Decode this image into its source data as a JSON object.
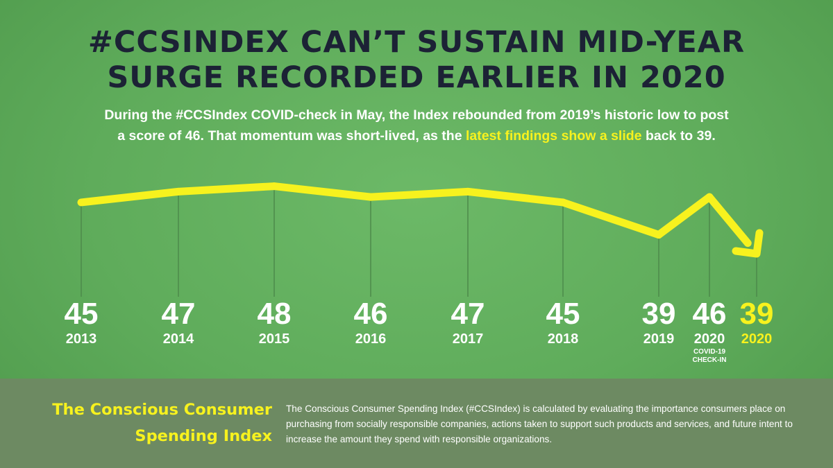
{
  "header": {
    "title_line1": "#CCSINDEX CAN’T SUSTAIN MID-YEAR",
    "title_line2": "SURGE RECORDED EARLIER IN 2020"
  },
  "subtitle": {
    "text_line1": "During the #CCSIndex COVID-check in May, the Index rebounded from 2019’s historic low to post",
    "text_line2_before": "a score of 46. That momentum was short-lived, as the ",
    "text_line2_highlight": "latest findings show a slide",
    "text_line2_after": " back to 39."
  },
  "colors": {
    "background": "#62ad5e",
    "title": "#1c2235",
    "accent_yellow": "#f7f21e",
    "footer_band": "#6d8a62"
  },
  "chart_data": {
    "type": "line",
    "title": "",
    "xlabel": "",
    "ylabel": "",
    "grid": false,
    "ylim": [
      36,
      50
    ],
    "points": [
      {
        "value": 45,
        "year": "2013",
        "note": ""
      },
      {
        "value": 47,
        "year": "2014",
        "note": ""
      },
      {
        "value": 48,
        "year": "2015",
        "note": ""
      },
      {
        "value": 46,
        "year": "2016",
        "note": ""
      },
      {
        "value": 47,
        "year": "2017",
        "note": ""
      },
      {
        "value": 45,
        "year": "2018",
        "note": ""
      },
      {
        "value": 39,
        "year": "2019",
        "note": ""
      },
      {
        "value": 46,
        "year": "2020",
        "note": "COVID-19 CHECK-IN"
      },
      {
        "value": 39,
        "year": "2020",
        "note": "",
        "highlight": true
      }
    ]
  },
  "footer": {
    "brand_line1": "The Conscious Consumer",
    "brand_line2": "Spending Index",
    "description": "The Conscious Consumer Spending Index (#CCSIndex) is calculated by evaluating the importance consumers place on purchasing from socially responsible companies, actions taken to support such products and services, and future intent to increase the amount they spend with responsible organizations."
  }
}
